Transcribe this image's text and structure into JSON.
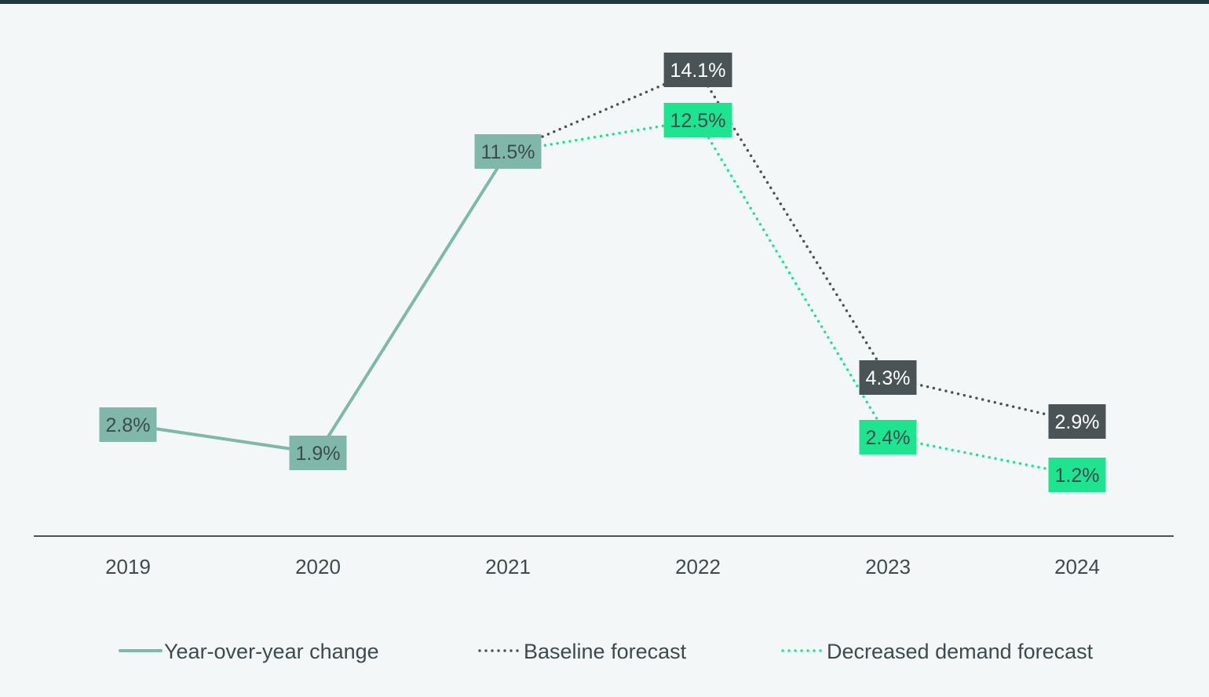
{
  "chart_data": {
    "type": "line",
    "x": [
      "2019",
      "2020",
      "2021",
      "2022",
      "2023",
      "2024"
    ],
    "series": [
      {
        "name": "Year-over-year change",
        "key": "yoy",
        "values": [
          2.8,
          1.9,
          11.5,
          null,
          null,
          null
        ],
        "labels": [
          "2.8%",
          "1.9%",
          "11.5%",
          null,
          null,
          null
        ],
        "style": "solid",
        "color": "#7fb8aa",
        "label_text_color": "#3f4a4e"
      },
      {
        "name": "Baseline forecast",
        "key": "baseline",
        "values": [
          null,
          null,
          11.5,
          14.1,
          4.3,
          2.9
        ],
        "labels": [
          null,
          null,
          null,
          "14.1%",
          "4.3%",
          "2.9%"
        ],
        "style": "dotted",
        "color": "#4a5457",
        "label_text_color": "#ffffff"
      },
      {
        "name": "Decreased demand forecast",
        "key": "decreased",
        "values": [
          null,
          null,
          11.5,
          12.5,
          2.4,
          1.2
        ],
        "labels": [
          null,
          null,
          null,
          "12.5%",
          "2.4%",
          "1.2%"
        ],
        "style": "dotted",
        "color": "#1ee38f",
        "label_text_color": "#3f4a4e"
      }
    ],
    "title": "",
    "xlabel": "",
    "ylabel": "",
    "ylim": [
      0,
      15
    ],
    "grid": false,
    "legend_position": "bottom"
  }
}
